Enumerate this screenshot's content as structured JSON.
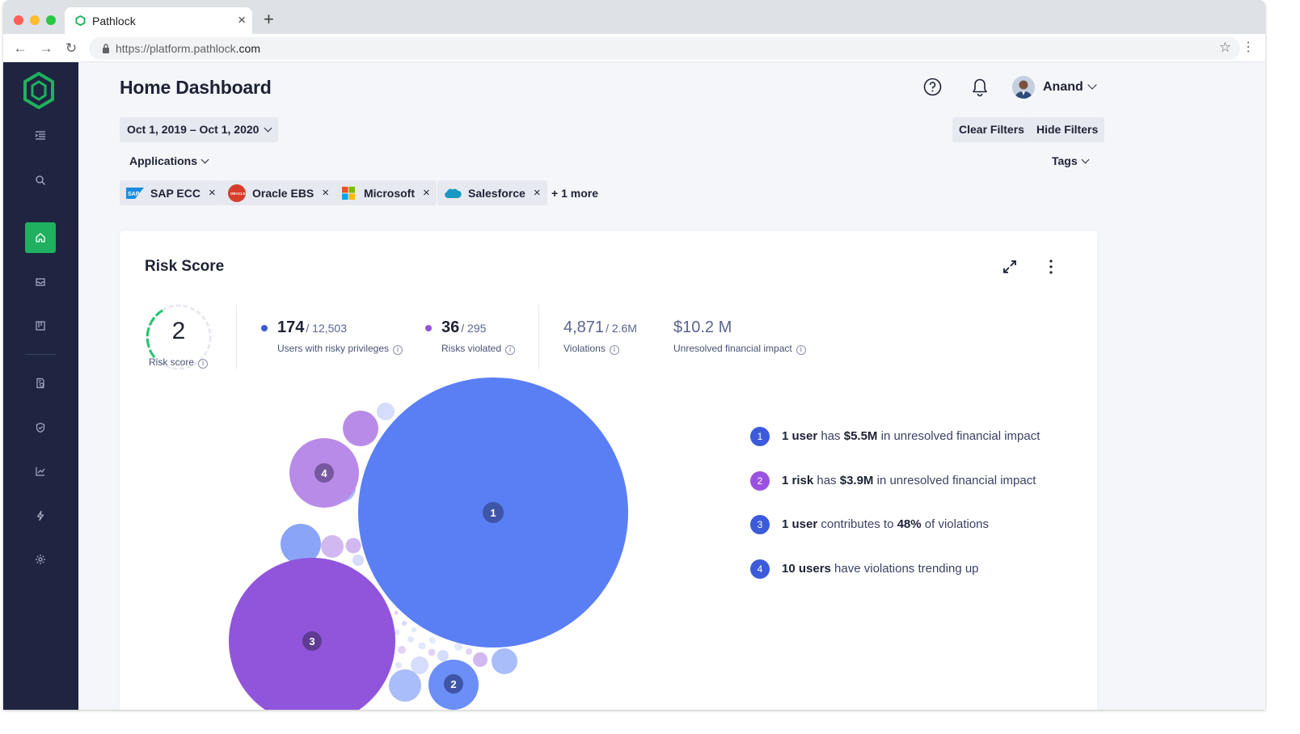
{
  "browser": {
    "tab_title": "Pathlock",
    "url_prefix": "https://platform.pathlock",
    "url_suffix": ".com"
  },
  "header": {
    "title": "Home Dashboard",
    "user_name": "Anand"
  },
  "filters": {
    "date_range": "Oct 1, 2019 – Oct 1, 2020",
    "clear_label": "Clear Filters",
    "hide_label": "Hide Filters",
    "applications_label": "Applications",
    "tags_label": "Tags",
    "chips": [
      {
        "label": "SAP ECC",
        "icon": "sap-logo"
      },
      {
        "label": "Oracle EBS",
        "icon": "oracle-logo"
      },
      {
        "label": "Microsoft",
        "icon": "microsoft-logo"
      },
      {
        "label": "Salesforce",
        "icon": "salesforce-logo"
      }
    ],
    "more_label": "+ 1 more"
  },
  "risk_card": {
    "title": "Risk Score",
    "score": "2",
    "score_label": "Risk score",
    "stats": [
      {
        "value": "174",
        "total": "/ 12,503",
        "label": "Users with risky privileges",
        "dot_color": "#3b5bdb"
      },
      {
        "value": "36",
        "total": "/ 295",
        "label": "Risks violated",
        "dot_color": "#9b51e0"
      },
      {
        "value": "4,871",
        "total": "/ 2.6M",
        "label": "Violations"
      },
      {
        "value": "$10.2 M",
        "total": "",
        "label": "Unresolved financial impact"
      }
    ],
    "bubbles": [
      {
        "label": "1",
        "color": "#5a7ff5"
      },
      {
        "label": "2",
        "color": "#6b8ff7"
      },
      {
        "label": "3",
        "color": "#9155dc"
      },
      {
        "label": "4",
        "color": "#b98be8"
      }
    ],
    "insights": [
      {
        "num": "1",
        "color": "#3b5bdb",
        "bold1": "1 user",
        "text1": " has ",
        "bold2": "$5.5M",
        "text2": " in unresolved financial impact"
      },
      {
        "num": "2",
        "color": "#9b51e0",
        "bold1": "1 risk",
        "text1": " has ",
        "bold2": "$3.9M",
        "text2": " in unresolved financial impact"
      },
      {
        "num": "3",
        "color": "#3b5bdb",
        "bold1": "1 user",
        "text1": " contributes to ",
        "bold2": "48%",
        "text2": " of violations"
      },
      {
        "num": "4",
        "color": "#3b5bdb",
        "bold1": "10 users",
        "text1": " have violations trending up",
        "bold2": "",
        "text2": ""
      }
    ]
  },
  "colors": {
    "sidebar_bg": "#1f2540",
    "accent_green": "#1fb15f",
    "bubble_blue": "#5a7ff5",
    "bubble_purple": "#9155dc"
  }
}
